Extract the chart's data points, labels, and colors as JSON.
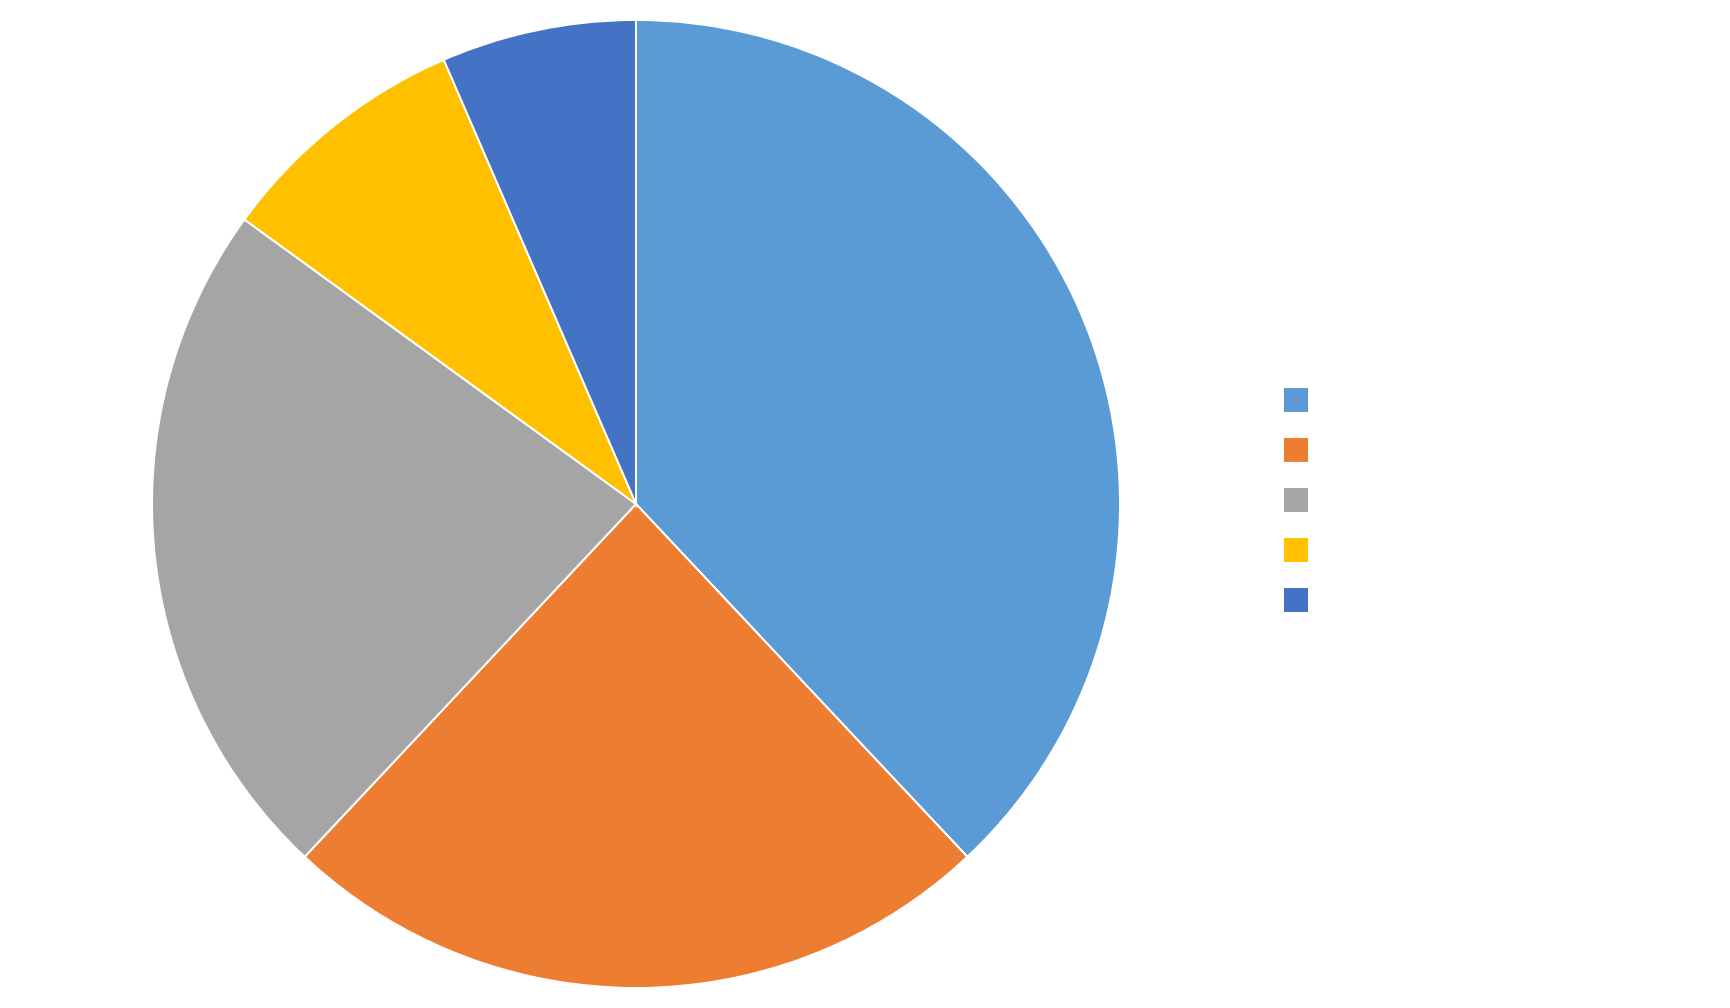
{
  "chart_data": {
    "type": "pie",
    "categories": [
      null,
      null,
      null,
      null,
      null
    ],
    "values": [
      38,
      24,
      23,
      8.5,
      6.5
    ],
    "colors": [
      "#5b9bd5",
      "#ed7d31",
      "#a5a5a5",
      "#ffc000",
      "#4472c4"
    ]
  }
}
